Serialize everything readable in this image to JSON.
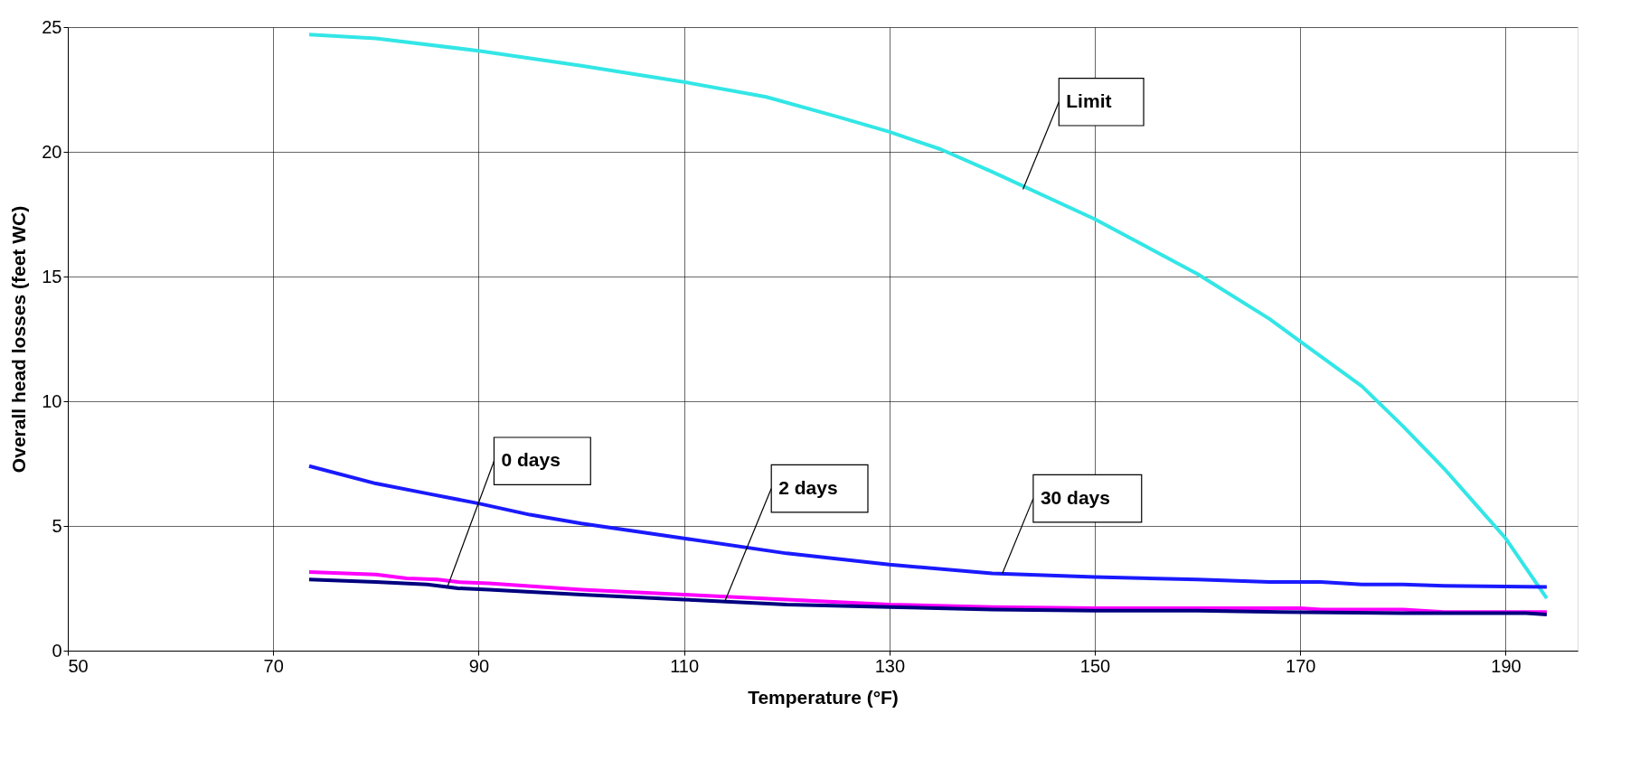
{
  "chart_data": {
    "type": "line",
    "xlabel": "Temperature (°F)",
    "ylabel": "Overall head losses (feet WC)",
    "xlim": [
      50,
      197
    ],
    "xticks": [
      50,
      70,
      90,
      110,
      130,
      150,
      170,
      190
    ],
    "ylim": [
      0,
      25
    ],
    "yticks": [
      0,
      5,
      10,
      15,
      20,
      25
    ],
    "grid": true,
    "marker": "none",
    "line_style": "solid",
    "series": [
      {
        "color": "#33e6e6",
        "x": [
          73.5,
          80,
          90,
          100,
          110,
          118,
          125,
          130,
          135,
          140,
          150,
          160,
          167,
          170,
          176,
          180,
          184,
          187,
          190,
          194
        ],
        "values": [
          24.7,
          24.55,
          24.05,
          23.45,
          22.8,
          22.2,
          21.4,
          20.8,
          20.1,
          19.2,
          17.3,
          15.1,
          13.3,
          12.4,
          10.6,
          9.0,
          7.3,
          5.9,
          4.5,
          2.1
        ]
      },
      {
        "color": "#1a1aff",
        "x": [
          73.5,
          80,
          85,
          90,
          95,
          100,
          110,
          120,
          130,
          140,
          150,
          160,
          167,
          172,
          176,
          180,
          184,
          194
        ],
        "values": [
          7.4,
          6.7,
          6.3,
          5.9,
          5.45,
          5.1,
          4.5,
          3.9,
          3.45,
          3.1,
          2.95,
          2.85,
          2.75,
          2.75,
          2.65,
          2.65,
          2.6,
          2.55
        ]
      },
      {
        "color": "#ff00ff",
        "x": [
          73.5,
          80,
          83,
          86,
          88,
          91,
          100,
          110,
          120,
          130,
          140,
          150,
          170,
          172,
          180,
          184,
          194
        ],
        "values": [
          3.15,
          3.05,
          2.9,
          2.85,
          2.75,
          2.7,
          2.45,
          2.25,
          2.05,
          1.85,
          1.75,
          1.7,
          1.7,
          1.65,
          1.65,
          1.55,
          1.55
        ]
      },
      {
        "color": "#000080",
        "x": [
          73.5,
          80,
          85,
          88,
          91,
          100,
          110,
          120,
          130,
          140,
          150,
          160,
          168,
          180,
          192,
          194
        ],
        "values": [
          2.85,
          2.75,
          2.65,
          2.5,
          2.45,
          2.25,
          2.05,
          1.85,
          1.75,
          1.65,
          1.6,
          1.6,
          1.55,
          1.5,
          1.5,
          1.45
        ]
      }
    ],
    "annotations": [
      {
        "text": "Limit",
        "x": 143,
        "y": 18.5
      },
      {
        "text": "0 days",
        "x": 87,
        "y": 2.6
      },
      {
        "text": "2 days",
        "x": 114,
        "y": 2.0
      },
      {
        "text": "30 days",
        "x": 141,
        "y": 3.1
      }
    ]
  }
}
